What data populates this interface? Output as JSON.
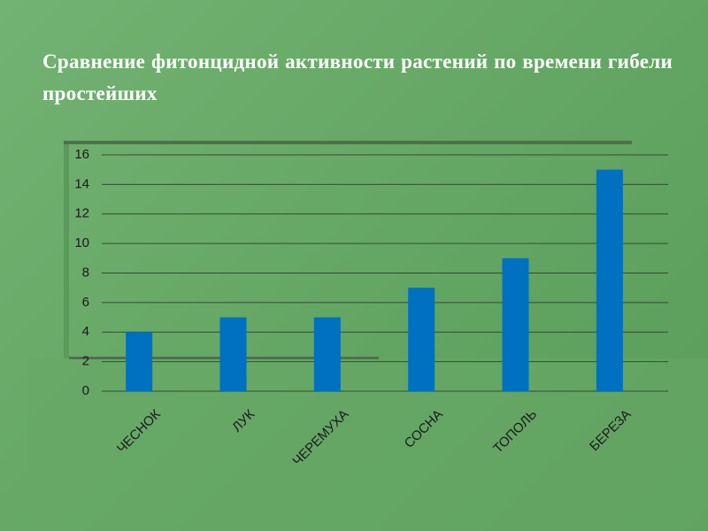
{
  "chart_data": {
    "type": "bar",
    "title": "Сравнение фитонцидной активности растений по времени гибели простейших",
    "categories": [
      "ЧЕСНОК",
      "ЛУК",
      "ЧЕРЕМУХА",
      "СОСНА",
      "ТОПОЛЬ",
      "БЕРЕЗА"
    ],
    "values": [
      4,
      5,
      5,
      7,
      9,
      15
    ],
    "color": "#0070c0",
    "ylim": [
      0,
      16
    ],
    "yticks": [
      0,
      2,
      4,
      6,
      8,
      10,
      12,
      14,
      16
    ],
    "grid": true
  }
}
